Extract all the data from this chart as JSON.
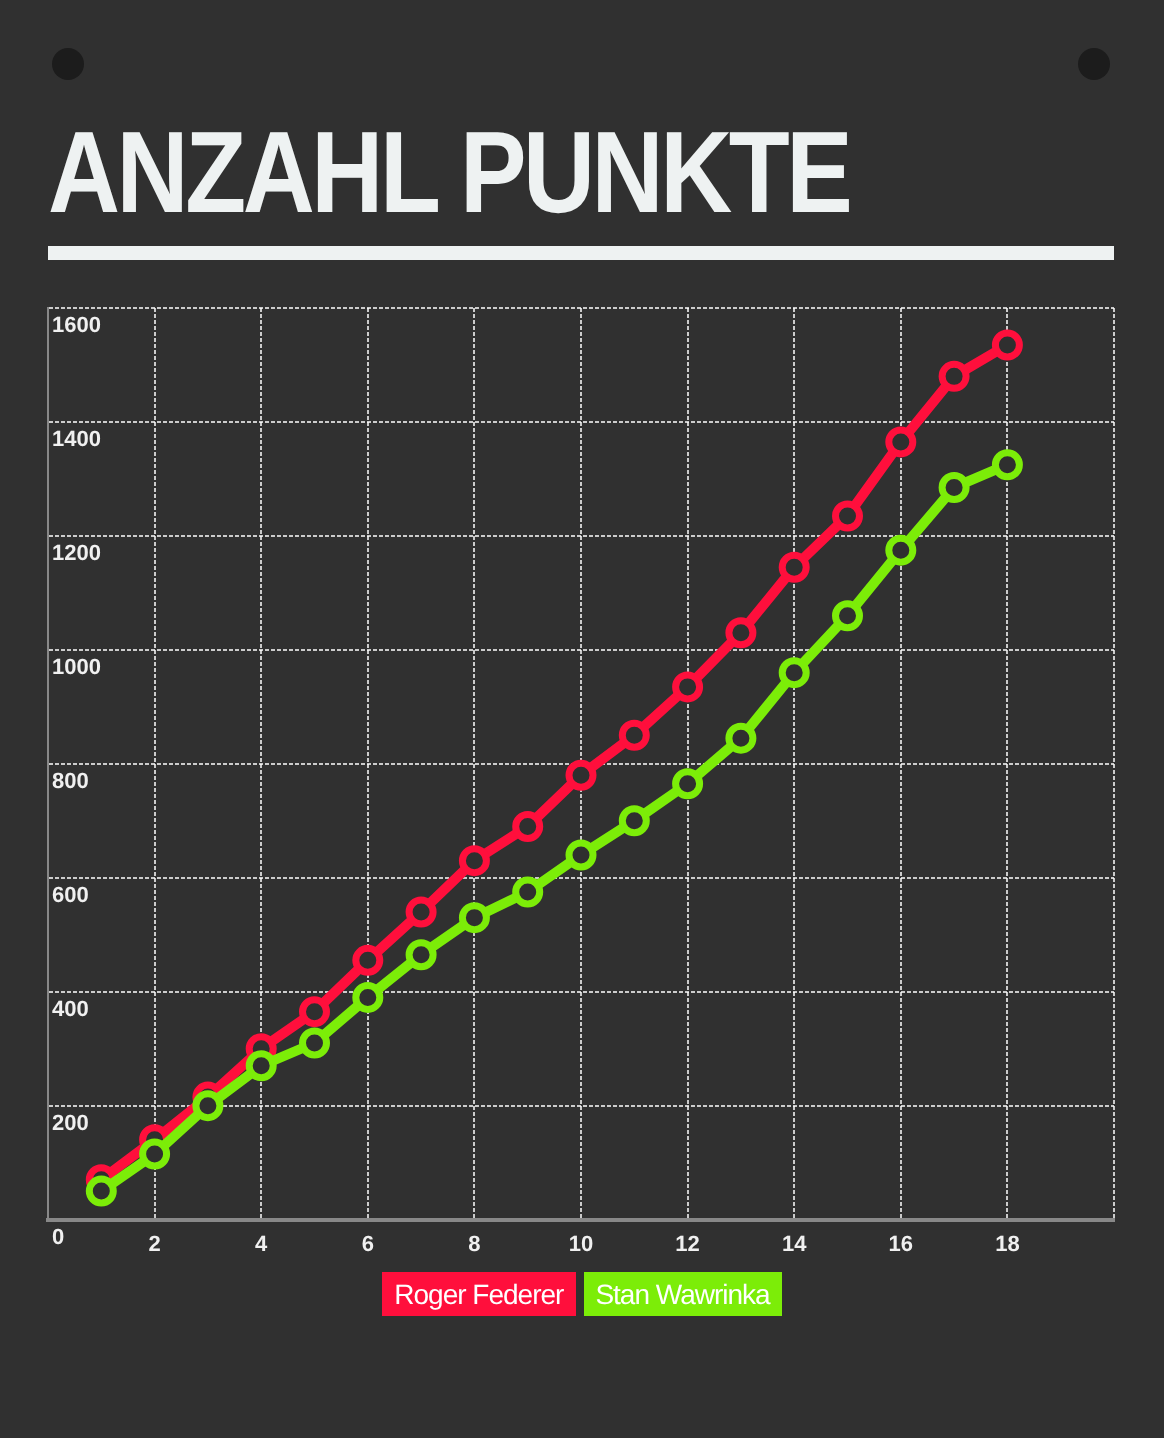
{
  "chart_data": {
    "type": "line",
    "title": "ANZAHL PUNKTE",
    "x": [
      1,
      2,
      3,
      4,
      5,
      6,
      7,
      8,
      9,
      10,
      11,
      12,
      13,
      14,
      15,
      16,
      17,
      18
    ],
    "series": [
      {
        "name": "Roger Federer",
        "color": "#ff0f3c",
        "values": [
          70,
          140,
          215,
          300,
          365,
          455,
          540,
          630,
          690,
          780,
          850,
          935,
          1030,
          1145,
          1235,
          1365,
          1480,
          1535
        ]
      },
      {
        "name": "Stan Wawrinka",
        "color": "#7ced08",
        "values": [
          50,
          115,
          200,
          270,
          310,
          390,
          465,
          530,
          575,
          640,
          700,
          765,
          845,
          960,
          1060,
          1175,
          1285,
          1325
        ]
      }
    ],
    "xlim": [
      0,
      20
    ],
    "xticks": [
      {
        "value": 0,
        "label": null
      },
      2,
      4,
      6,
      8,
      10,
      12,
      14,
      16,
      18,
      {
        "value": 20,
        "label": null
      }
    ],
    "ylim": [
      0,
      1600
    ],
    "yticks": [
      0,
      200,
      400,
      600,
      800,
      1000,
      1200,
      1400,
      1600
    ],
    "grid": true,
    "legend": "bottom",
    "marker": "circle",
    "line_style": "solid"
  }
}
